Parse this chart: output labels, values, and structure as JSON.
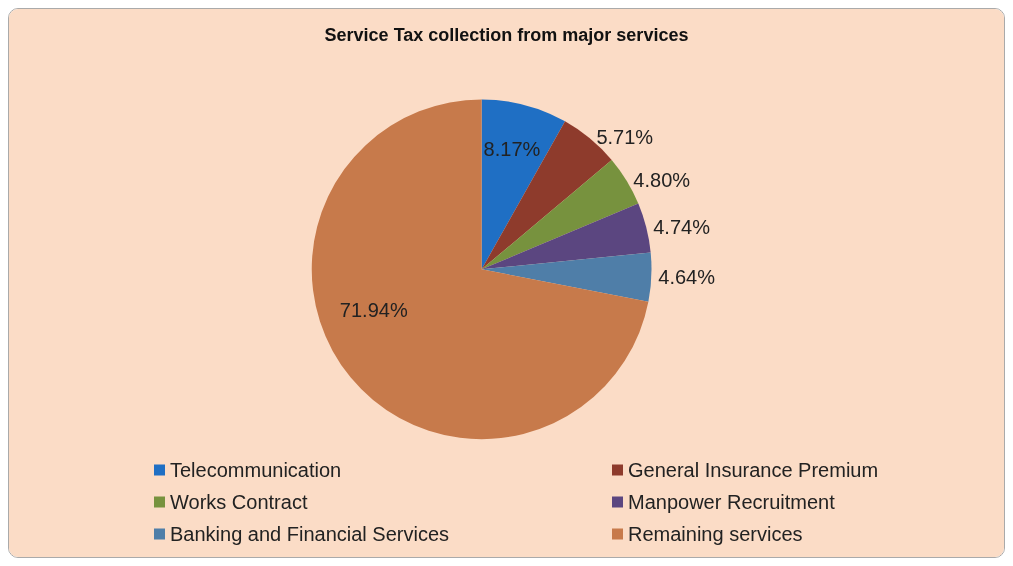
{
  "chart_data": {
    "type": "pie",
    "title": "Service Tax collection from major services",
    "categories": [
      "Telecommunication",
      "General Insurance Premium",
      "Works Contract",
      "Manpower Recruitment",
      "Banking and Financial Services",
      "Remaining services"
    ],
    "values": [
      8.17,
      5.71,
      4.8,
      4.74,
      4.64,
      71.94
    ],
    "colors": [
      "#1f6fc4",
      "#8e3b2c",
      "#77923e",
      "#5b4680",
      "#4f7ea8",
      "#c77a4b"
    ],
    "value_labels": [
      "8.17%",
      "5.71%",
      "4.80%",
      "4.74%",
      "4.64%",
      "71.94%"
    ],
    "legend": "bottom"
  }
}
